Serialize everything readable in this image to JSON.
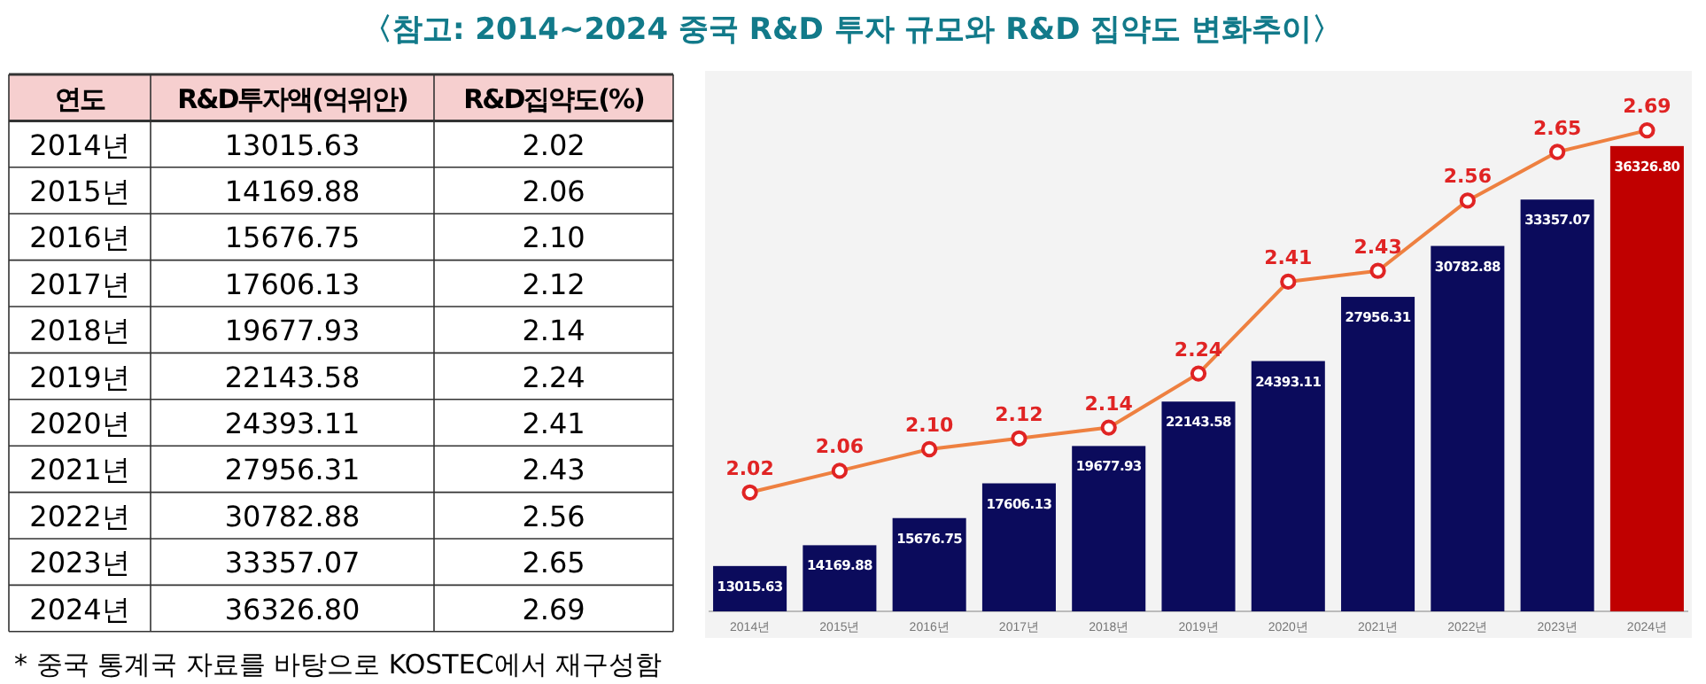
{
  "chart_data": {
    "type": "bar",
    "title": "〈참고: 2014~2024 중국 R&D 투자 규모와 R&D 집약도 변화추이〉",
    "xlabel": "연도",
    "categories": [
      "2014년",
      "2015년",
      "2016년",
      "2017년",
      "2018년",
      "2019년",
      "2020년",
      "2021년",
      "2022년",
      "2023년",
      "2024년"
    ],
    "series": [
      {
        "name": "R&D투자액(억위안)",
        "colors": [
          "#0b0b5c",
          "#0b0b5c",
          "#0b0b5c",
          "#0b0b5c",
          "#0b0b5c",
          "#0b0b5c",
          "#0b0b5c",
          "#0b0b5c",
          "#0b0b5c",
          "#0b0b5c",
          "#c00000"
        ],
        "values": [
          13015.63,
          14169.88,
          15676.75,
          17606.13,
          19677.93,
          22143.58,
          24393.11,
          27956.31,
          30782.88,
          33357.07,
          36326.8
        ],
        "value_labels": [
          "13015.63",
          "14169.88",
          "15676.75",
          "17606.13",
          "19677.93",
          "22143.58",
          "24393.11",
          "27956.31",
          "30782.88",
          "33357.07",
          "36326.80"
        ]
      },
      {
        "name": "R&D집약도(%)",
        "type": "line",
        "axis": "y2",
        "color": "#ee8040",
        "values": [
          2.02,
          2.06,
          2.1,
          2.12,
          2.14,
          2.24,
          2.41,
          2.43,
          2.56,
          2.65,
          2.69
        ],
        "value_labels": [
          "2.02",
          "2.06",
          "2.10",
          "2.12",
          "2.14",
          "2.24",
          "2.41",
          "2.43",
          "2.56",
          "2.65",
          "2.69"
        ]
      }
    ],
    "ylim": [
      10500,
      40500
    ],
    "y2lim": [
      1.8,
      2.8
    ],
    "marker": "circle",
    "tick_labels": "x",
    "annotations": [
      "* 중국 통계국 자료를 바탕으로 KOSTEC에서 재구성함"
    ]
  }
}
